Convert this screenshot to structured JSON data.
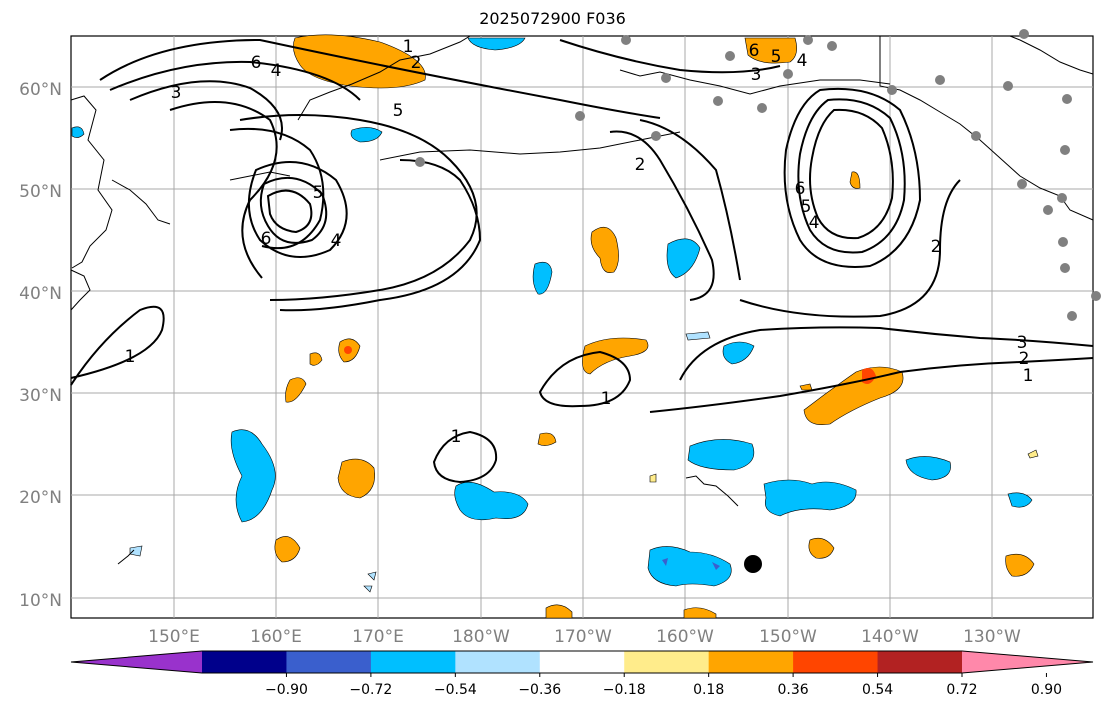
{
  "title": "2025072900 F036",
  "map": {
    "lat_labels": [
      "60°N",
      "50°N",
      "40°N",
      "30°N",
      "20°N",
      "10°N"
    ],
    "lon_labels": [
      "150°E",
      "160°E",
      "170°E",
      "180°W",
      "170°W",
      "160°W",
      "150°W",
      "140°W",
      "130°W"
    ],
    "contour_labels": [
      "1",
      "2",
      "3",
      "4",
      "5",
      "6"
    ]
  },
  "colorbar": {
    "colors": [
      "#9932CC",
      "#00008B",
      "#3A5FCD",
      "#00BFFF",
      "#B0E2FF",
      "#FFFFFF",
      "#FFEC8B",
      "#FFA500",
      "#FF4500",
      "#B22222",
      "#FF88AA"
    ],
    "tick_labels": [
      "−0.90",
      "−0.72",
      "−0.54",
      "−0.36",
      "−0.18",
      "0.18",
      "0.36",
      "0.54",
      "0.72",
      "0.90"
    ]
  }
}
